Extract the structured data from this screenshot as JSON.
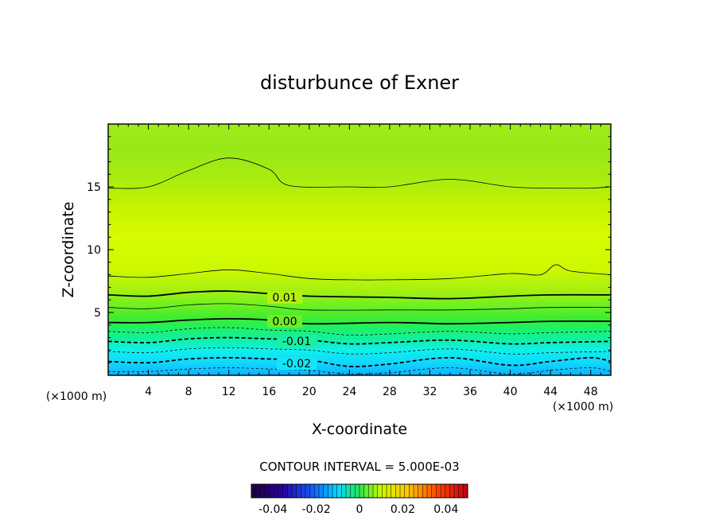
{
  "chart_data": {
    "type": "heatmap",
    "title": "disturbunce of Exner",
    "xlabel": "X-coordinate",
    "ylabel": "Z-coordinate",
    "x_unit": "(×1000 m)",
    "z_unit": "(×1000 m)",
    "xlim": [
      0,
      50
    ],
    "ylim": [
      0,
      20
    ],
    "x_ticks": [
      "4",
      "8",
      "12",
      "16",
      "20",
      "24",
      "28",
      "32",
      "36",
      "40",
      "44",
      "48"
    ],
    "y_ticks": [
      "5",
      "10",
      "15"
    ],
    "contour_labels": [
      "0.01",
      "0.00",
      "-0.01",
      "-0.02"
    ],
    "contour_interval_text": "CONTOUR INTERVAL = 5.000E-03",
    "colorbar": {
      "range": [
        -0.05,
        0.05
      ],
      "tick_labels": [
        "-0.04",
        "-0.02",
        "0",
        "0.02",
        "0.04"
      ]
    },
    "contours": [
      {
        "level": 0.02,
        "style": "thin-solid",
        "x": [
          0,
          4,
          8,
          12,
          16,
          18,
          24,
          28,
          34,
          40,
          44,
          48,
          50
        ],
        "z": [
          14.9,
          15.0,
          16.3,
          17.3,
          16.4,
          15.1,
          15.0,
          15.0,
          15.6,
          15.0,
          14.9,
          14.9,
          15.0
        ]
      },
      {
        "level": 0.015,
        "style": "thin-solid",
        "x": [
          0,
          4,
          8,
          12,
          16,
          20,
          24,
          28,
          34,
          40,
          43,
          44.5,
          46,
          50
        ],
        "z": [
          7.9,
          7.8,
          8.1,
          8.4,
          8.1,
          7.7,
          7.6,
          7.6,
          7.7,
          8.1,
          8.0,
          8.8,
          8.3,
          8.0
        ]
      },
      {
        "level": 0.01,
        "style": "thick-solid",
        "x": [
          0,
          4,
          8,
          12,
          16,
          20,
          28,
          34,
          40,
          44,
          50
        ],
        "z": [
          6.4,
          6.3,
          6.6,
          6.7,
          6.5,
          6.3,
          6.2,
          6.1,
          6.3,
          6.4,
          6.4
        ]
      },
      {
        "level": 0.005,
        "style": "thin-solid",
        "x": [
          0,
          4,
          8,
          12,
          16,
          20,
          28,
          34,
          40,
          44,
          50
        ],
        "z": [
          5.4,
          5.3,
          5.6,
          5.7,
          5.5,
          5.2,
          5.2,
          5.2,
          5.3,
          5.4,
          5.4
        ]
      },
      {
        "level": 0.0,
        "style": "thick-solid",
        "x": [
          0,
          4,
          8,
          12,
          16,
          20,
          28,
          34,
          40,
          44,
          50
        ],
        "z": [
          4.2,
          4.2,
          4.4,
          4.5,
          4.4,
          4.1,
          4.2,
          4.1,
          4.2,
          4.3,
          4.3
        ]
      },
      {
        "level": -0.005,
        "style": "thin-dashed",
        "x": [
          0,
          4,
          8,
          12,
          16,
          20,
          24,
          28,
          34,
          40,
          44,
          50
        ],
        "z": [
          3.5,
          3.4,
          3.7,
          3.8,
          3.6,
          3.5,
          3.2,
          3.3,
          3.5,
          3.3,
          3.4,
          3.5
        ]
      },
      {
        "level": -0.01,
        "style": "thick-dashed",
        "x": [
          0,
          4,
          8,
          12,
          16,
          20,
          24,
          28,
          34,
          40,
          44,
          50
        ],
        "z": [
          2.7,
          2.6,
          2.9,
          3.0,
          2.9,
          2.8,
          2.5,
          2.6,
          2.8,
          2.5,
          2.6,
          2.7
        ]
      },
      {
        "level": -0.015,
        "style": "thin-dashed",
        "x": [
          0,
          4,
          8,
          12,
          16,
          20,
          24,
          28,
          34,
          40,
          44,
          50
        ],
        "z": [
          1.9,
          1.8,
          2.1,
          2.2,
          2.1,
          2.0,
          1.7,
          1.8,
          2.1,
          1.7,
          1.8,
          1.9
        ]
      },
      {
        "level": -0.02,
        "style": "thick-dashed",
        "x": [
          0,
          4,
          8,
          12,
          16,
          20,
          24,
          28,
          34,
          40,
          44,
          48,
          50
        ],
        "z": [
          1.1,
          1.0,
          1.3,
          1.4,
          1.3,
          1.2,
          0.7,
          0.9,
          1.4,
          0.8,
          1.1,
          1.4,
          1.1
        ]
      },
      {
        "level": -0.025,
        "style": "thin-dashed",
        "x": [
          0,
          4,
          8,
          12,
          16,
          20,
          24,
          28,
          34,
          40,
          44,
          48,
          50
        ],
        "z": [
          0.3,
          0.3,
          0.5,
          0.6,
          0.5,
          0.4,
          0.1,
          0.2,
          0.6,
          0.1,
          0.4,
          0.6,
          0.3
        ]
      }
    ]
  }
}
